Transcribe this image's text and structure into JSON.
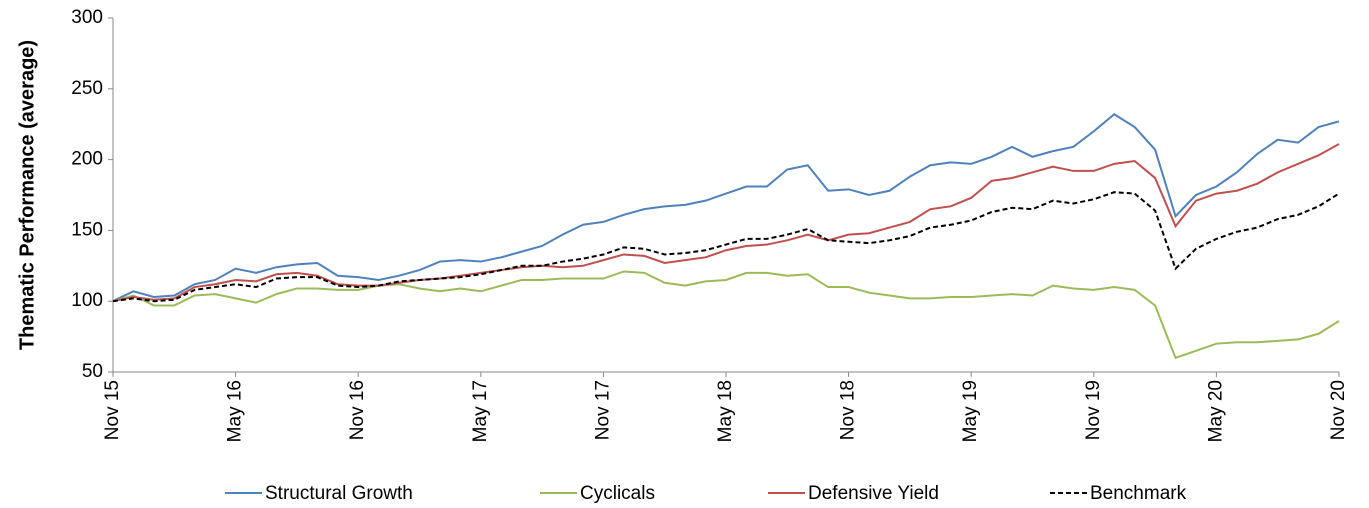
{
  "chart_data": {
    "type": "line",
    "y_label": "Thematic Performance (average)",
    "categories": [
      "Nov 15",
      null,
      null,
      null,
      null,
      null,
      "May 16",
      null,
      null,
      null,
      null,
      null,
      "Nov 16",
      null,
      null,
      null,
      null,
      null,
      "May 17",
      null,
      null,
      null,
      null,
      null,
      "Nov 17",
      null,
      null,
      null,
      null,
      null,
      "May 18",
      null,
      null,
      null,
      null,
      null,
      "Nov 18",
      null,
      null,
      null,
      null,
      null,
      "May 19",
      null,
      null,
      null,
      null,
      null,
      "Nov 19",
      null,
      null,
      null,
      null,
      null,
      "May 20",
      null,
      null,
      null,
      null,
      null,
      "Nov 20"
    ],
    "series": [
      {
        "name": "Structural Growth",
        "color": "#4f81bd",
        "dash": false,
        "values": [
          100,
          107,
          103,
          104,
          112,
          115,
          123,
          120,
          124,
          126,
          127,
          118,
          117,
          115,
          118,
          122,
          128,
          129,
          128,
          131,
          135,
          139,
          147,
          154,
          156,
          161,
          165,
          167,
          168,
          171,
          176,
          181,
          181,
          193,
          196,
          178,
          179,
          175,
          178,
          188,
          196,
          198,
          197,
          202,
          209,
          202,
          206,
          209,
          220,
          232,
          223,
          207,
          160,
          175,
          181,
          191,
          204,
          214,
          212,
          223,
          227
        ]
      },
      {
        "name": "Cyclicals",
        "color": "#9bbb59",
        "dash": false,
        "values": [
          100,
          104,
          97,
          97,
          104,
          105,
          102,
          99,
          105,
          109,
          109,
          108,
          108,
          111,
          112,
          109,
          107,
          109,
          107,
          111,
          115,
          115,
          116,
          116,
          116,
          121,
          120,
          113,
          111,
          114,
          115,
          120,
          120,
          118,
          119,
          110,
          110,
          106,
          104,
          102,
          102,
          103,
          103,
          104,
          105,
          104,
          111,
          109,
          108,
          110,
          108,
          97,
          60,
          65,
          70,
          71,
          71,
          72,
          73,
          77,
          86
        ]
      },
      {
        "name": "Defensive Yield",
        "color": "#c0504d",
        "dash": false,
        "values": [
          100,
          103,
          101,
          102,
          110,
          112,
          115,
          114,
          119,
          120,
          118,
          112,
          111,
          111,
          113,
          115,
          116,
          118,
          120,
          122,
          124,
          125,
          124,
          125,
          129,
          133,
          132,
          127,
          129,
          131,
          136,
          139,
          140,
          143,
          147,
          143,
          147,
          148,
          152,
          156,
          165,
          167,
          173,
          185,
          187,
          191,
          195,
          192,
          192,
          197,
          199,
          187,
          153,
          171,
          176,
          178,
          183,
          191,
          197,
          203,
          211
        ]
      },
      {
        "name": "Benchmark",
        "color": "#000000",
        "dash": true,
        "values": [
          100,
          102,
          100,
          101,
          108,
          110,
          112,
          110,
          116,
          117,
          117,
          111,
          110,
          111,
          114,
          115,
          116,
          117,
          119,
          122,
          125,
          125,
          128,
          130,
          133,
          138,
          137,
          133,
          134,
          136,
          140,
          144,
          144,
          147,
          151,
          143,
          142,
          141,
          143,
          146,
          152,
          154,
          157,
          163,
          166,
          165,
          171,
          169,
          172,
          177,
          176,
          164,
          123,
          137,
          144,
          149,
          152,
          158,
          161,
          167,
          176
        ]
      }
    ],
    "ylim": [
      50,
      300
    ],
    "yticks": [
      50,
      100,
      150,
      200,
      250,
      300
    ],
    "grid": false
  }
}
